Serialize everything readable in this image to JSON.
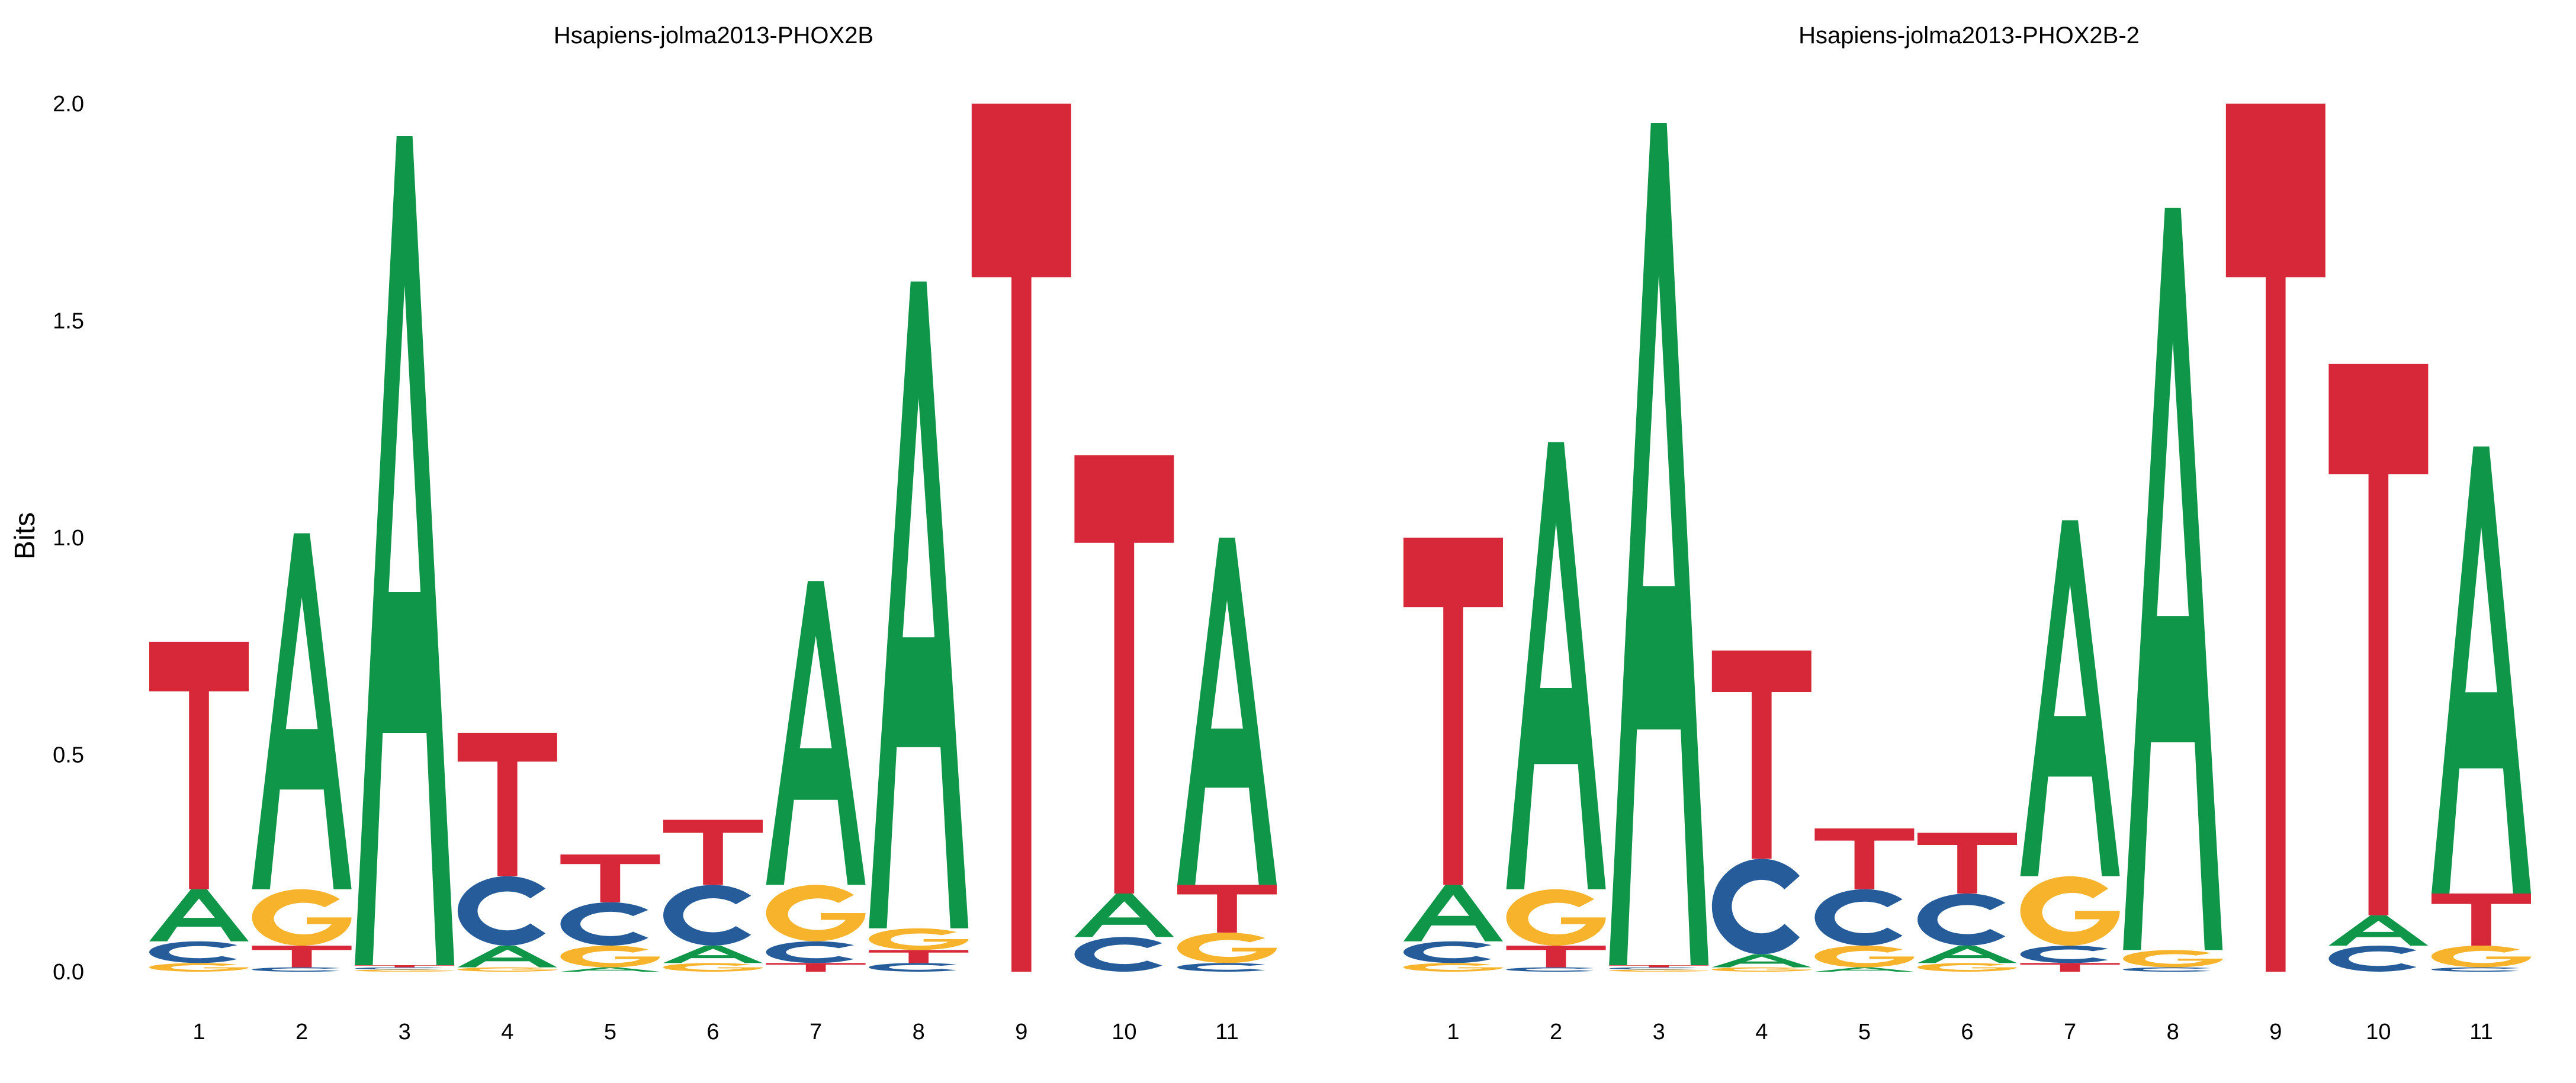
{
  "chart_data": {
    "type": "sequence-logo",
    "ylabel": "Bits",
    "ylim": [
      0,
      2
    ],
    "yticks": [
      "0.0",
      "0.5",
      "1.0",
      "1.5",
      "2.0"
    ],
    "alphabet_colors": {
      "A": "#109648",
      "C": "#255C99",
      "G": "#F7B32B",
      "T": "#D62839"
    },
    "panels": [
      {
        "title": "Hsapiens-jolma2013-PHOX2B",
        "positions": [
          "1",
          "2",
          "3",
          "4",
          "5",
          "6",
          "7",
          "8",
          "9",
          "10",
          "11"
        ],
        "heights": [
          {
            "G": 0.02,
            "C": 0.05,
            "A": 0.12,
            "T": 0.57
          },
          {
            "C": 0.01,
            "T": 0.05,
            "G": 0.13,
            "A": 0.82
          },
          {
            "G": 0.005,
            "C": 0.005,
            "T": 0.005,
            "A": 1.91
          },
          {
            "G": 0.01,
            "A": 0.05,
            "C": 0.16,
            "T": 0.33
          },
          {
            "A": 0.01,
            "G": 0.05,
            "C": 0.1,
            "T": 0.11
          },
          {
            "G": 0.02,
            "A": 0.04,
            "C": 0.14,
            "T": 0.15
          },
          {
            "T": 0.02,
            "C": 0.05,
            "G": 0.13,
            "A": 0.7
          },
          {
            "C": 0.02,
            "T": 0.03,
            "G": 0.05,
            "A": 1.49
          },
          {
            "T": 2.0
          },
          {
            "C": 0.08,
            "A": 0.1,
            "T": 1.01
          },
          {
            "C": 0.02,
            "G": 0.07,
            "T": 0.11,
            "A": 0.8
          }
        ]
      },
      {
        "title": "Hsapiens-jolma2013-PHOX2B-2",
        "positions": [
          "1",
          "2",
          "3",
          "4",
          "5",
          "6",
          "7",
          "8",
          "9",
          "10",
          "11"
        ],
        "heights": [
          {
            "G": 0.02,
            "C": 0.05,
            "A": 0.13,
            "T": 0.8
          },
          {
            "C": 0.01,
            "T": 0.05,
            "G": 0.13,
            "A": 1.03
          },
          {
            "G": 0.005,
            "C": 0.005,
            "T": 0.005,
            "A": 1.94
          },
          {
            "G": 0.01,
            "A": 0.03,
            "C": 0.22,
            "T": 0.48
          },
          {
            "A": 0.01,
            "G": 0.05,
            "C": 0.13,
            "T": 0.14
          },
          {
            "G": 0.02,
            "A": 0.04,
            "C": 0.12,
            "T": 0.14
          },
          {
            "T": 0.02,
            "C": 0.04,
            "G": 0.16,
            "A": 0.82
          },
          {
            "C": 0.01,
            "G": 0.04,
            "A": 1.71
          },
          {
            "T": 2.0
          },
          {
            "C": 0.06,
            "A": 0.07,
            "T": 1.27
          },
          {
            "C": 0.01,
            "G": 0.05,
            "T": 0.12,
            "A": 1.03
          }
        ]
      }
    ]
  }
}
